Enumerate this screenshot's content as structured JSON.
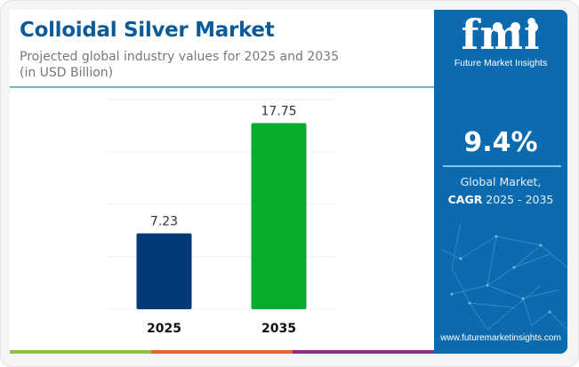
{
  "header": {
    "title": "Colloidal Silver Market",
    "subtitle_line1": "Projected global industry values for 2025 and 2035",
    "subtitle_line2": "(in USD Billion)"
  },
  "sidebar": {
    "logo_mark": "fmi",
    "logo_text": "Future Market Insights",
    "cagr_value": "9.4%",
    "cagr_label_line1": "Global Market,",
    "cagr_label_bold": "CAGR",
    "cagr_label_years": " 2025 - 2035",
    "url": "www.futuremarketinsights.com"
  },
  "colors": {
    "title": "#0c5a98",
    "sidebar_bg": "#0b6bae",
    "bar_2025": "#003a78",
    "bar_2035": "#08ab2e",
    "stripe_green": "#8bc04a",
    "stripe_orange": "#e2603a",
    "stripe_purple": "#8a2f84"
  },
  "chart_data": {
    "type": "bar",
    "title": "Colloidal Silver Market",
    "subtitle": "Projected global industry values for 2025 and 2035 (in USD Billion)",
    "categories": [
      "2025",
      "2035"
    ],
    "values": [
      7.23,
      17.75
    ],
    "value_labels": [
      "7.23",
      "17.75"
    ],
    "bar_colors": [
      "#003a78",
      "#08ab2e"
    ],
    "xlabel": "",
    "ylabel": "USD Billion",
    "ylim": [
      0,
      20
    ],
    "y_gridlines": [
      0,
      5,
      10,
      15,
      20
    ],
    "y_tick_labels_visible": false,
    "grid": true,
    "legend": "none"
  }
}
